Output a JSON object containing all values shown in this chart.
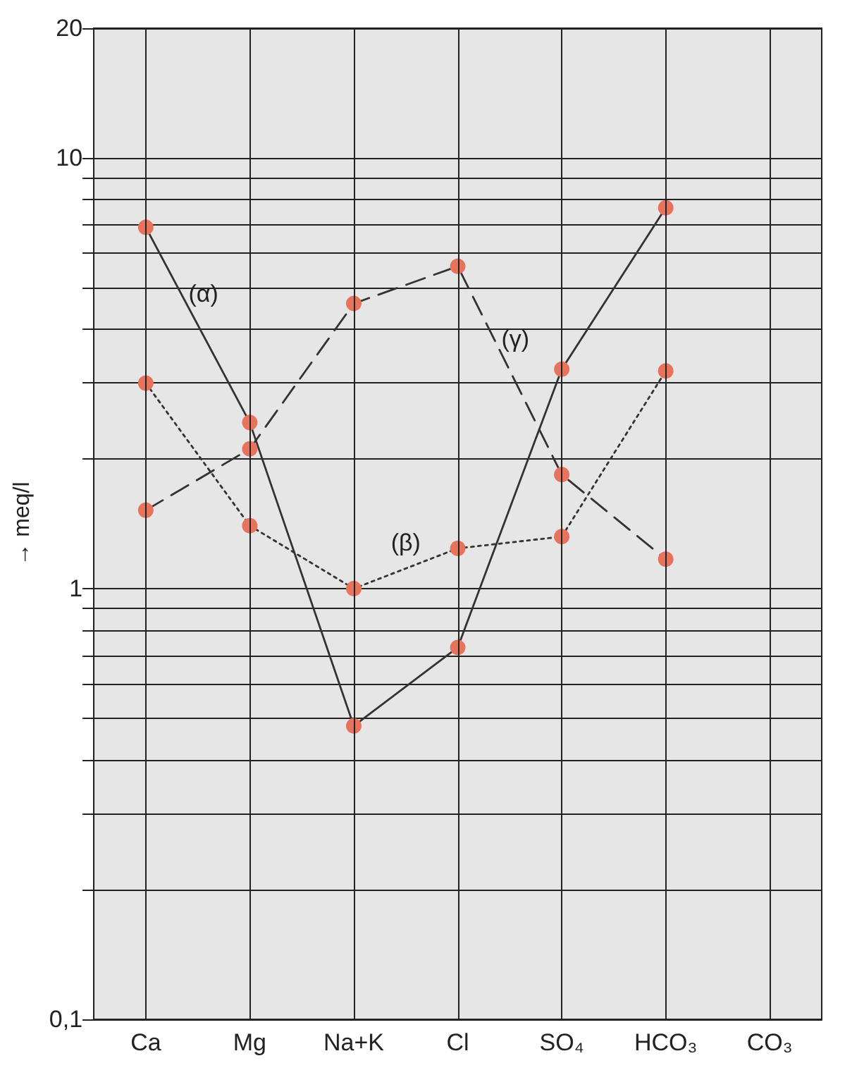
{
  "chart_data": {
    "type": "line",
    "ylabel": "→ meq/l",
    "categories": [
      "Ca",
      "Mg",
      "Na+K",
      "Cl",
      "SO₄",
      "HCO₃",
      "CO₃"
    ],
    "series": [
      {
        "name": "(α)",
        "color": "#e8735c",
        "line_style": "solid",
        "values": [
          6.9,
          2.43,
          0.48,
          0.73,
          3.23,
          7.66,
          null
        ]
      },
      {
        "name": "(β)",
        "color": "#e8735c",
        "line_style": "dotted",
        "values": [
          3.0,
          1.4,
          1.0,
          1.24,
          1.32,
          3.2,
          null
        ]
      },
      {
        "name": "(γ)",
        "color": "#e8735c",
        "line_style": "dashed",
        "values": [
          1.52,
          2.11,
          4.59,
          5.6,
          1.84,
          1.17,
          null
        ]
      }
    ],
    "log": "y",
    "ylim": [
      0.1,
      20
    ],
    "yticks": [
      {
        "value": 0.1,
        "label": "0,1"
      },
      {
        "value": 0.2,
        "label": null
      },
      {
        "value": 0.3,
        "label": null
      },
      {
        "value": 0.4,
        "label": null
      },
      {
        "value": 0.5,
        "label": null
      },
      {
        "value": 0.6,
        "label": null
      },
      {
        "value": 0.7,
        "label": null
      },
      {
        "value": 0.8,
        "label": null
      },
      {
        "value": 0.9,
        "label": null
      },
      1,
      {
        "value": 2,
        "label": null
      },
      {
        "value": 3,
        "label": null
      },
      {
        "value": 4,
        "label": null
      },
      {
        "value": 5,
        "label": null
      },
      {
        "value": 6,
        "label": null
      },
      {
        "value": 7,
        "label": null
      },
      {
        "value": 8,
        "label": null
      },
      {
        "value": 9,
        "label": null
      },
      10,
      20
    ],
    "grid": true,
    "marker": "circle",
    "legend": false
  }
}
